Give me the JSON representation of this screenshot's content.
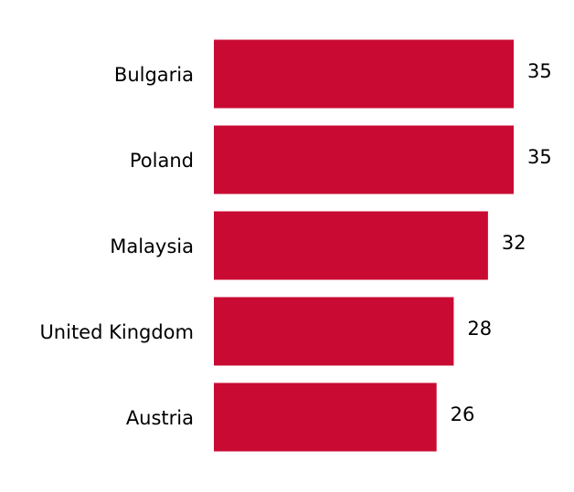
{
  "chart_data": {
    "type": "barh",
    "categories": [
      "Bulgaria",
      "Poland",
      "Malaysia",
      "United Kingdom",
      "Austria"
    ],
    "values": [
      35,
      35,
      32,
      28,
      26
    ],
    "color": "#c90b33"
  }
}
